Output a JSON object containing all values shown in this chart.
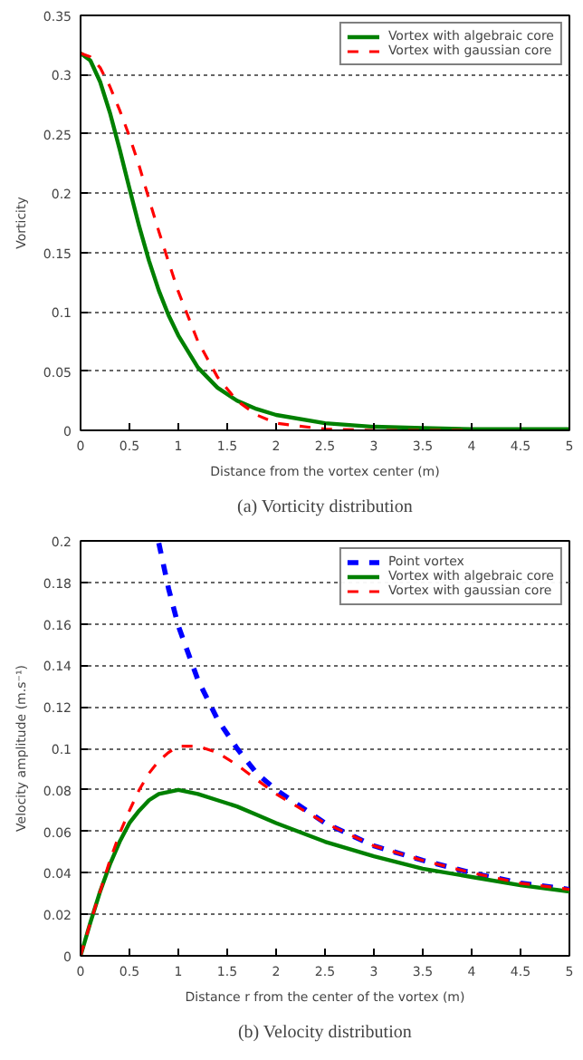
{
  "chart_data": [
    {
      "type": "line",
      "title": "(a) Vorticity distribution",
      "xlabel": "Distance from the vortex center (m)",
      "ylabel": "Vorticity",
      "xlim": [
        0,
        5
      ],
      "xticks": [
        0,
        0.5,
        1,
        1.5,
        2,
        2.5,
        3,
        3.5,
        4,
        4.5,
        5
      ],
      "ylim": [
        0,
        0.35
      ],
      "yticks": [
        0,
        0.05,
        0.1,
        0.15,
        0.2,
        0.25,
        0.3,
        0.35
      ],
      "grid": "y",
      "legend": "top right",
      "series": [
        {
          "name": "Vortex with algebraic core",
          "color": "#008000",
          "line_style": "solid",
          "x": [
            0,
            0.1,
            0.2,
            0.3,
            0.4,
            0.5,
            0.6,
            0.7,
            0.8,
            0.9,
            1,
            1.2,
            1.4,
            1.6,
            1.8,
            2,
            2.5,
            3,
            3.5,
            4,
            4.5,
            5
          ],
          "values": [
            0.318,
            0.312,
            0.294,
            0.268,
            0.237,
            0.204,
            0.172,
            0.143,
            0.118,
            0.097,
            0.08,
            0.053,
            0.036,
            0.025,
            0.018,
            0.013,
            0.006,
            0.003,
            0.002,
            0.001,
            0.001,
            0.001
          ]
        },
        {
          "name": "Vortex with gaussian core",
          "color": "#ff0000",
          "line_style": "dashed",
          "x": [
            0,
            0.1,
            0.2,
            0.3,
            0.4,
            0.5,
            0.6,
            0.7,
            0.8,
            0.9,
            1,
            1.2,
            1.4,
            1.6,
            1.8,
            2,
            2.5,
            3,
            3.5,
            4
          ],
          "values": [
            0.318,
            0.315,
            0.306,
            0.29,
            0.27,
            0.248,
            0.223,
            0.195,
            0.168,
            0.142,
            0.117,
            0.075,
            0.045,
            0.025,
            0.013,
            0.006,
            0.001,
            0,
            0,
            0
          ]
        }
      ]
    },
    {
      "type": "line",
      "title": "(b) Velocity distribution",
      "xlabel": "Distance r from the center of the vortex (m)",
      "ylabel": "Velocity amplitude (m.s⁻¹)",
      "xlim": [
        0,
        5
      ],
      "xticks": [
        0,
        0.5,
        1,
        1.5,
        2,
        2.5,
        3,
        3.5,
        4,
        4.5,
        5
      ],
      "ylim": [
        0,
        0.2
      ],
      "yticks": [
        0,
        0.02,
        0.04,
        0.06,
        0.08,
        0.1,
        0.12,
        0.14,
        0.16,
        0.18,
        0.2
      ],
      "grid": "y",
      "legend": "top right",
      "series": [
        {
          "name": "Point vortex",
          "color": "#0000ff",
          "line_style": "dashed",
          "x": [
            0.8,
            0.9,
            1,
            1.2,
            1.4,
            1.6,
            1.8,
            2,
            2.5,
            3,
            3.5,
            4,
            4.5,
            5
          ],
          "values": [
            0.199,
            0.177,
            0.159,
            0.133,
            0.114,
            0.1,
            0.088,
            0.08,
            0.064,
            0.053,
            0.046,
            0.04,
            0.035,
            0.032
          ]
        },
        {
          "name": "Vortex with algebraic core",
          "color": "#008000",
          "line_style": "solid",
          "x": [
            0,
            0.1,
            0.2,
            0.3,
            0.4,
            0.5,
            0.6,
            0.7,
            0.8,
            0.9,
            1,
            1.2,
            1.4,
            1.6,
            1.8,
            2,
            2.5,
            3,
            3.5,
            4,
            4.5,
            5
          ],
          "values": [
            0,
            0.016,
            0.031,
            0.044,
            0.055,
            0.064,
            0.07,
            0.075,
            0.078,
            0.079,
            0.08,
            0.078,
            0.075,
            0.072,
            0.068,
            0.064,
            0.055,
            0.048,
            0.042,
            0.038,
            0.034,
            0.031
          ]
        },
        {
          "name": "Vortex with gaussian core",
          "color": "#ff0000",
          "line_style": "dashed",
          "x": [
            0,
            0.1,
            0.2,
            0.3,
            0.4,
            0.5,
            0.6,
            0.7,
            0.8,
            0.9,
            1,
            1.2,
            1.4,
            1.6,
            1.8,
            2,
            2.5,
            3,
            3.5,
            4,
            4.5,
            5
          ],
          "values": [
            0,
            0.016,
            0.031,
            0.046,
            0.059,
            0.07,
            0.08,
            0.088,
            0.094,
            0.098,
            0.101,
            0.101,
            0.098,
            0.092,
            0.085,
            0.078,
            0.064,
            0.053,
            0.046,
            0.04,
            0.035,
            0.032
          ]
        }
      ]
    }
  ]
}
